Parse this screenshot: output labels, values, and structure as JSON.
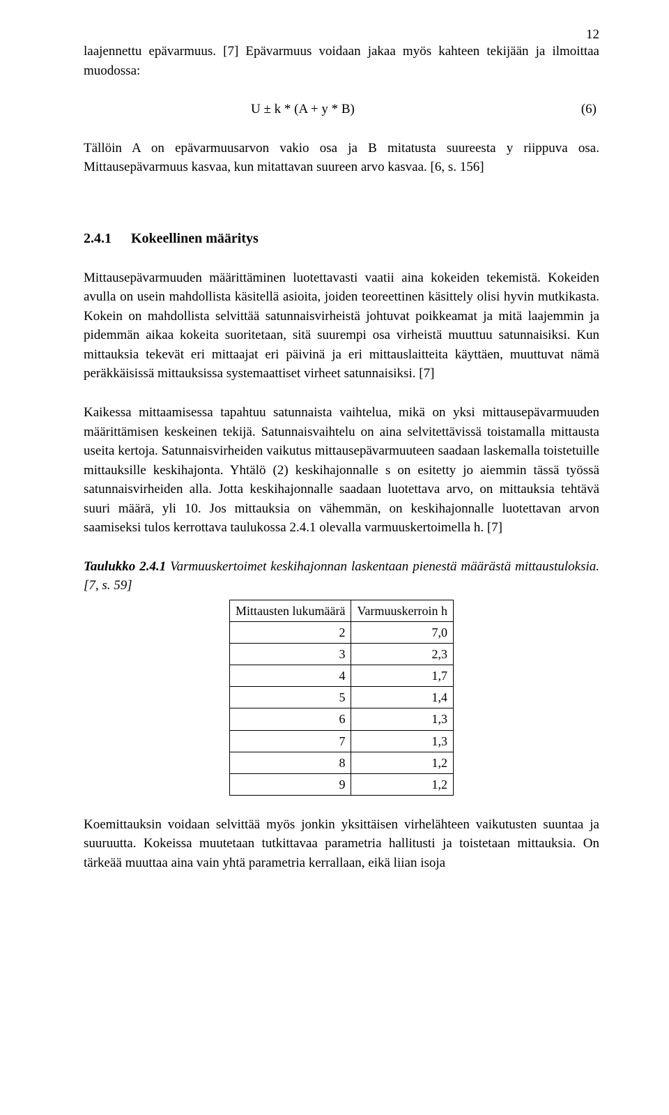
{
  "pageNumber": "12",
  "p1": "laajennettu epävarmuus. [7] Epävarmuus voidaan jakaa myös kahteen tekijään ja ilmoittaa muodossa:",
  "formula": "U  ± k * (A + y * B)",
  "eqnum": "(6)",
  "p2": "Tällöin A on epävarmuusarvon vakio osa ja B mitatusta suureesta y riippuva osa. Mittausepävarmuus kasvaa, kun mitattavan suureen arvo kasvaa. [6, s. 156]",
  "section": {
    "num": "2.4.1",
    "title": "Kokeellinen määritys"
  },
  "p3": "Mittausepävarmuuden määrittäminen luotettavasti vaatii aina kokeiden tekemistä. Kokeiden avulla on usein mahdollista käsitellä asioita, joiden teoreettinen käsittely olisi hyvin mutkikasta. Kokein on mahdollista selvittää satunnaisvirheistä johtuvat poikkeamat ja mitä laajemmin ja pidemmän aikaa kokeita suoritetaan, sitä suurempi osa virheistä muuttuu satunnaisiksi. Kun mittauksia tekevät eri mittaajat eri päivinä ja eri mittauslaitteita käyttäen, muuttuvat nämä peräkkäisissä mittauksissa systemaattiset virheet satunnaisiksi. [7]",
  "p4": "Kaikessa mittaamisessa tapahtuu satunnaista vaihtelua, mikä on yksi mittausepävarmuuden määrittämisen keskeinen tekijä. Satunnaisvaihtelu on aina selvitettävissä toistamalla mittausta useita kertoja. Satunnaisvirheiden vaikutus mittausepävarmuuteen saadaan laskemalla toistetuille mittauksille keskihajonta. Yhtälö (2) keskihajonnalle s on esitetty jo aiemmin tässä työssä satunnaisvirheiden alla. Jotta keskihajonnalle saadaan luotettava arvo, on mittauksia tehtävä suuri määrä, yli 10. Jos mittauksia on vähemmän, on keskihajonnalle luotettavan arvon saamiseksi tulos kerrottava taulukossa 2.4.1 olevalla varmuuskertoimella h. [7]",
  "tableCaption": {
    "lead": "Taulukko 2.4.1",
    "rest": " Varmuuskertoimet keskihajonnan laskentaan pienestä määrästä mittaustuloksia. [7, s. 59]"
  },
  "table": {
    "headers": [
      "Mittausten lukumäärä",
      "Varmuuskerroin h"
    ],
    "rows": [
      [
        "2",
        "7,0"
      ],
      [
        "3",
        "2,3"
      ],
      [
        "4",
        "1,7"
      ],
      [
        "5",
        "1,4"
      ],
      [
        "6",
        "1,3"
      ],
      [
        "7",
        "1,3"
      ],
      [
        "8",
        "1,2"
      ],
      [
        "9",
        "1,2"
      ]
    ]
  },
  "p5": "Koemittauksin voidaan selvittää myös jonkin yksittäisen virhelähteen vaikutusten suuntaa ja suuruutta. Kokeissa muutetaan tutkittavaa parametria hallitusti ja toistetaan mittauksia. On tärkeää muuttaa aina vain yhtä parametria kerrallaan, eikä liian isoja"
}
